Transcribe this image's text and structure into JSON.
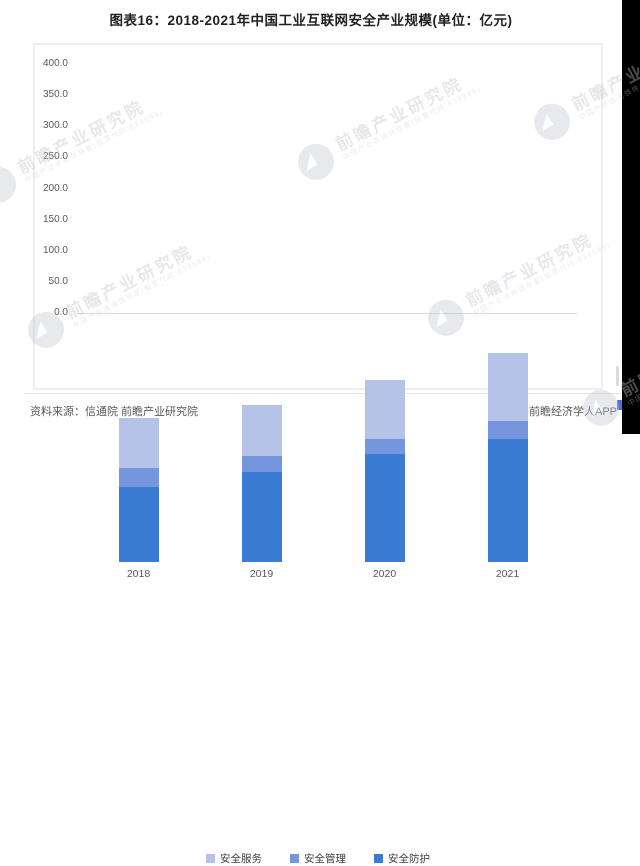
{
  "title": "图表16：2018-2021年中国工业互联网安全产业规模(单位：亿元)",
  "chart_data": {
    "type": "bar",
    "stacked": true,
    "title": "图表16：2018-2021年中国工业互联网安全产业规模(单位：亿元)",
    "unit": "亿元",
    "categories": [
      "2018",
      "2019",
      "2020",
      "2021"
    ],
    "series": [
      {
        "name": "安全防护",
        "key": "protection",
        "color": "#3A7CD3",
        "values": [
          121,
          145,
          173,
          198
        ]
      },
      {
        "name": "安全管理",
        "key": "management",
        "color": "#7396DC",
        "values": [
          30,
          26,
          25,
          29
        ]
      },
      {
        "name": "安全服务",
        "key": "service",
        "color": "#B6C3E8",
        "values": [
          81,
          82,
          95,
          109
        ]
      }
    ],
    "totals": [
      232,
      253,
      293,
      336
    ],
    "legend_order": [
      "安全服务",
      "安全管理",
      "安全防护"
    ],
    "legend_position": "bottom",
    "grid": false,
    "ylim": [
      0,
      400
    ],
    "ytick_step": 50,
    "yticks": [
      "400.0",
      "350.0",
      "300.0",
      "250.0",
      "200.0",
      "150.0",
      "100.0",
      "50.0",
      "0.0"
    ]
  },
  "footer": {
    "source": "资料来源：信通院 前瞻产业研究院",
    "credit": "@前瞻经济学人APP"
  },
  "watermark": {
    "text": "前瞻产业研究院",
    "subtext": "中国产业咨询领导者(股票代码:839599)"
  }
}
